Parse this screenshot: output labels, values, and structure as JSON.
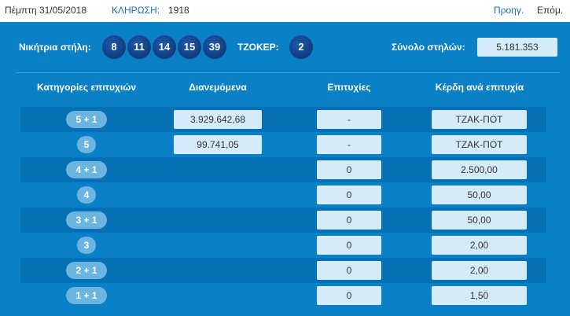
{
  "header": {
    "date": "Πέμπτη 31/05/2018",
    "draw_label": "ΚΛΗΡΩΣΗ:",
    "draw_number": "1918",
    "prev": "Προηγ.",
    "next": "Επόμ."
  },
  "winning": {
    "label": "Νικήτρια στήλη:",
    "numbers": [
      "8",
      "11",
      "14",
      "15",
      "39"
    ],
    "joker_label": "ΤΖΟΚΕΡ:",
    "joker": "2",
    "total_label": "Σύνολο στηλών:",
    "total": "5.181.353"
  },
  "columns": [
    "Κατηγορίες επιτυχιών",
    "Διανεμόμενα",
    "Επιτυχίες",
    "Κέρδη ανά επιτυχία"
  ],
  "rows": [
    {
      "cat": "5 + 1",
      "distributed": "3.929.642,68",
      "winners": "-",
      "prize": "ΤΖΑΚ-ΠΟΤ"
    },
    {
      "cat": "5",
      "distributed": "99.741,05",
      "winners": "-",
      "prize": "ΤΖΑΚ-ΠΟΤ"
    },
    {
      "cat": "4 + 1",
      "distributed": null,
      "winners": "0",
      "prize": "2.500,00"
    },
    {
      "cat": "4",
      "distributed": null,
      "winners": "0",
      "prize": "50,00"
    },
    {
      "cat": "3 + 1",
      "distributed": null,
      "winners": "0",
      "prize": "50,00"
    },
    {
      "cat": "3",
      "distributed": null,
      "winners": "0",
      "prize": "2,00"
    },
    {
      "cat": "2 + 1",
      "distributed": null,
      "winners": "0",
      "prize": "2,00"
    },
    {
      "cat": "1 + 1",
      "distributed": null,
      "winners": "0",
      "prize": "1,50"
    }
  ]
}
